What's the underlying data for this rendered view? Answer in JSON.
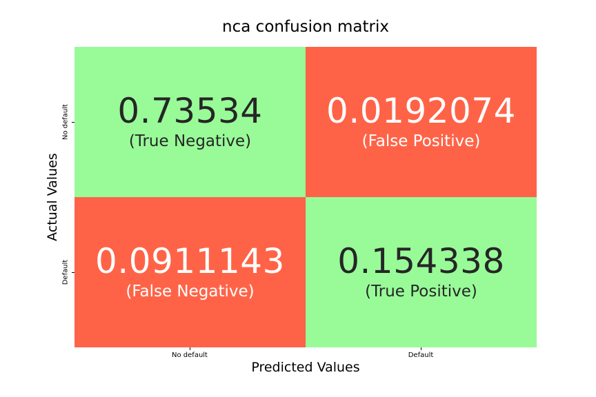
{
  "chart_data": {
    "type": "heatmap",
    "title": "nca confusion matrix",
    "xlabel": "Predicted Values",
    "ylabel": "Actual Values",
    "x_categories": [
      "No default",
      "Default"
    ],
    "y_categories": [
      "No default",
      "Default"
    ],
    "values": [
      [
        0.73534,
        0.0192074
      ],
      [
        0.0911143,
        0.154338
      ]
    ],
    "cell_text": [
      [
        {
          "value": "0.73534",
          "label": "(True Negative)"
        },
        {
          "value": "0.0192074",
          "label": "(False Positive)"
        }
      ],
      [
        {
          "value": "0.0911143",
          "label": "(False Negative)"
        },
        {
          "value": "0.154338",
          "label": "(True Positive)"
        }
      ]
    ],
    "colors": {
      "correct": "#98fb98",
      "incorrect": "#ff6347",
      "dark_text": "#262626",
      "light_text": "#ffffff"
    },
    "cell_class": [
      [
        "correct",
        "incorrect"
      ],
      [
        "incorrect",
        "correct"
      ]
    ],
    "grid": false,
    "legend": "none"
  }
}
